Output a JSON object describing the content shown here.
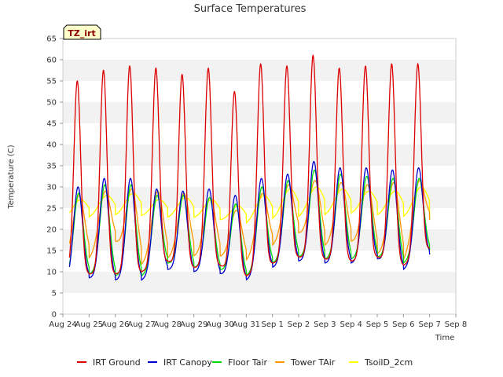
{
  "chart_data": {
    "type": "line",
    "title": "Surface Temperatures",
    "xlabel": "Time",
    "ylabel": "Temperature (C)",
    "site_tag": "TZ_irt",
    "ylim": [
      0,
      65
    ],
    "yticks": [
      0,
      5,
      10,
      15,
      20,
      25,
      30,
      35,
      40,
      45,
      50,
      55,
      60,
      65
    ],
    "xlim_days": [
      0,
      15
    ],
    "xtick_labels": [
      "Aug 24",
      "Aug 25",
      "Aug 26",
      "Aug 27",
      "Aug 28",
      "Aug 29",
      "Aug 30",
      "Aug 31",
      "Sep 1",
      "Sep 2",
      "Sep 3",
      "Sep 4",
      "Sep 5",
      "Sep 6",
      "Sep 7",
      "Sep 8"
    ],
    "grid": "horizontal bands",
    "legend_position": "bottom",
    "series": [
      {
        "name": "IRT Ground",
        "color": "#dd0000",
        "daily_min": [
          10.5,
          9.5,
          9.5,
          10.0,
          12.5,
          11.0,
          11.5,
          9.0,
          12.0,
          13.5,
          13.0,
          12.5,
          13.5,
          11.5,
          15.5
        ],
        "daily_max": [
          55.0,
          57.5,
          58.5,
          58.0,
          56.5,
          58.0,
          52.5,
          59.0,
          58.5,
          61.0,
          58.0,
          58.5,
          59.0,
          59.0
        ]
      },
      {
        "name": "IRT Canopy",
        "color": "#0000cc",
        "daily_min": [
          7.5,
          8.5,
          8.0,
          8.0,
          10.5,
          10.0,
          9.5,
          8.0,
          11.0,
          12.5,
          12.0,
          12.0,
          13.0,
          10.5,
          14.0
        ],
        "daily_max": [
          30.0,
          32.0,
          32.0,
          29.5,
          29.0,
          29.5,
          28.0,
          32.0,
          33.0,
          36.0,
          34.5,
          34.5,
          34.0,
          34.5
        ]
      },
      {
        "name": "Floor Tair",
        "color": "#00dd00",
        "daily_min": [
          8.5,
          9.5,
          9.0,
          9.0,
          12.0,
          11.0,
          10.5,
          9.0,
          12.0,
          13.5,
          13.0,
          13.0,
          13.5,
          12.0,
          15.0
        ],
        "daily_max": [
          28.5,
          30.5,
          30.5,
          28.0,
          28.0,
          27.5,
          26.0,
          30.0,
          31.5,
          34.0,
          33.0,
          32.5,
          32.0,
          32.0
        ]
      },
      {
        "name": "Tower TAir",
        "color": "#ff9900",
        "daily_min": [
          13.0,
          13.0,
          17.0,
          11.5,
          13.0,
          13.5,
          13.5,
          12.5,
          16.0,
          19.0,
          16.0,
          17.0,
          14.0,
          12.5,
          22.0
        ],
        "daily_max": [
          28.0,
          29.0,
          29.5,
          29.0,
          28.5,
          27.5,
          24.5,
          28.5,
          30.5,
          31.5,
          31.0,
          30.5,
          31.0,
          31.5
        ]
      },
      {
        "name": "TsoilD_2cm",
        "color": "#ffff00",
        "daily_min": [
          22.0,
          22.5,
          23.0,
          23.0,
          22.5,
          22.5,
          22.0,
          21.0,
          22.0,
          22.5,
          23.0,
          23.5,
          23.0,
          22.5,
          22.5
        ],
        "daily_max": [
          27.0,
          28.0,
          28.5,
          27.0,
          27.5,
          27.0,
          25.5,
          28.0,
          29.5,
          30.0,
          29.5,
          29.0,
          29.0,
          30.0
        ]
      }
    ]
  }
}
